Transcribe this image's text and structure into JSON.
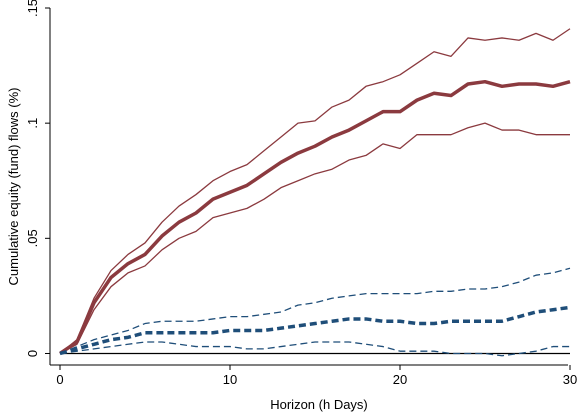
{
  "chart_data": {
    "type": "line",
    "title": "",
    "xlabel": "Horizon (h Days)",
    "ylabel": "Cumulative equity (fund) flows (%)",
    "xlim": [
      0,
      30
    ],
    "ylim": [
      -0.005,
      0.15
    ],
    "xticks": [
      0,
      10,
      20,
      30
    ],
    "xtick_labels": [
      "0",
      "10",
      "20",
      "30"
    ],
    "yticks": [
      0,
      0.05,
      0.1,
      0.15
    ],
    "ytick_labels": [
      "0",
      ".05",
      ".1",
      ".15"
    ],
    "grid": false,
    "legend": "none",
    "x": [
      0,
      1,
      2,
      3,
      4,
      5,
      6,
      7,
      8,
      9,
      10,
      11,
      12,
      13,
      14,
      15,
      16,
      17,
      18,
      19,
      20,
      21,
      22,
      23,
      24,
      25,
      26,
      27,
      28,
      29,
      30
    ],
    "series": [
      {
        "role": "estimate",
        "color": "#8b3a3f",
        "style": "solid-thick",
        "values": [
          0,
          0.005,
          0.022,
          0.033,
          0.039,
          0.043,
          0.051,
          0.057,
          0.061,
          0.067,
          0.07,
          0.073,
          0.078,
          0.083,
          0.087,
          0.09,
          0.094,
          0.097,
          0.101,
          0.105,
          0.105,
          0.11,
          0.113,
          0.112,
          0.117,
          0.118,
          0.116,
          0.117,
          0.117,
          0.116,
          0.118
        ]
      },
      {
        "role": "upper-band",
        "color": "#8b3a3f",
        "style": "solid-thin",
        "values": [
          0,
          0.006,
          0.024,
          0.036,
          0.043,
          0.048,
          0.057,
          0.064,
          0.069,
          0.075,
          0.079,
          0.082,
          0.088,
          0.094,
          0.1,
          0.101,
          0.107,
          0.11,
          0.116,
          0.118,
          0.121,
          0.126,
          0.131,
          0.129,
          0.137,
          0.136,
          0.137,
          0.136,
          0.139,
          0.136,
          0.141
        ]
      },
      {
        "role": "lower-band",
        "color": "#8b3a3f",
        "style": "solid-thin",
        "values": [
          0,
          0.004,
          0.019,
          0.029,
          0.035,
          0.038,
          0.045,
          0.05,
          0.053,
          0.059,
          0.061,
          0.063,
          0.067,
          0.072,
          0.075,
          0.078,
          0.08,
          0.084,
          0.086,
          0.091,
          0.089,
          0.095,
          0.095,
          0.095,
          0.098,
          0.1,
          0.097,
          0.097,
          0.095,
          0.095,
          0.095
        ]
      },
      {
        "role": "estimate",
        "color": "#1f4e79",
        "style": "dashed-thick",
        "values": [
          0,
          0.002,
          0.004,
          0.006,
          0.007,
          0.009,
          0.009,
          0.009,
          0.009,
          0.009,
          0.01,
          0.01,
          0.01,
          0.011,
          0.012,
          0.013,
          0.014,
          0.015,
          0.015,
          0.014,
          0.014,
          0.013,
          0.013,
          0.014,
          0.014,
          0.014,
          0.014,
          0.016,
          0.018,
          0.019,
          0.02
        ]
      },
      {
        "role": "upper-band",
        "color": "#1f4e79",
        "style": "dashed-thin",
        "values": [
          0,
          0.003,
          0.006,
          0.008,
          0.01,
          0.013,
          0.014,
          0.014,
          0.014,
          0.015,
          0.016,
          0.016,
          0.017,
          0.018,
          0.021,
          0.022,
          0.024,
          0.025,
          0.026,
          0.026,
          0.026,
          0.026,
          0.027,
          0.027,
          0.028,
          0.028,
          0.029,
          0.031,
          0.034,
          0.035,
          0.037
        ]
      },
      {
        "role": "lower-band",
        "color": "#1f4e79",
        "style": "dashed-thin",
        "values": [
          0,
          0.001,
          0.002,
          0.003,
          0.004,
          0.005,
          0.005,
          0.004,
          0.003,
          0.003,
          0.003,
          0.002,
          0.002,
          0.003,
          0.004,
          0.005,
          0.005,
          0.005,
          0.004,
          0.003,
          0.001,
          0.001,
          0.001,
          0.0,
          0.0,
          0.0,
          -0.001,
          0.0,
          0.001,
          0.003,
          0.003
        ]
      }
    ],
    "zero_line": true
  }
}
